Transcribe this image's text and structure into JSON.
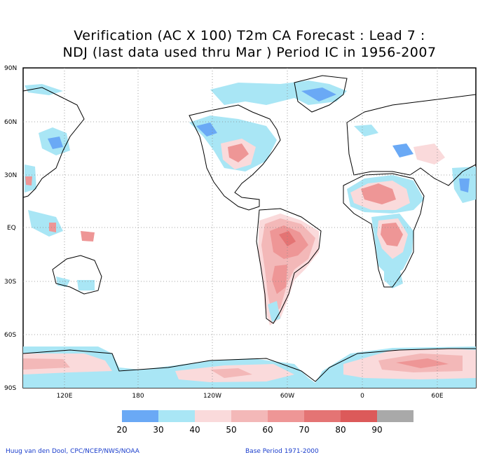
{
  "title_line1": "Verification (AC X 100) T2m CA Forecast : Lead 7 :",
  "title_line2": "NDJ (last data used thru Mar ) Period IC in 1956-2007",
  "lat_labels": [
    "90N",
    "60N",
    "30N",
    "EQ",
    "30S",
    "60S",
    "90S"
  ],
  "lon_labels": [
    "120E",
    "180",
    "120W",
    "60W",
    "0",
    "60E"
  ],
  "colorbar": {
    "ticks": [
      "20",
      "30",
      "40",
      "50",
      "60",
      "70",
      "80",
      "90"
    ],
    "colors": [
      "#6aa9f5",
      "#a9e6f5",
      "#fadadb",
      "#f3b8b8",
      "#ee9696",
      "#e47474",
      "#dc5a5a",
      "#a9a9a9"
    ]
  },
  "footer_left": "Huug van den Dool, CPC/NCEP/NWS/NOAA",
  "footer_right": "Base Period 1971-2000"
}
